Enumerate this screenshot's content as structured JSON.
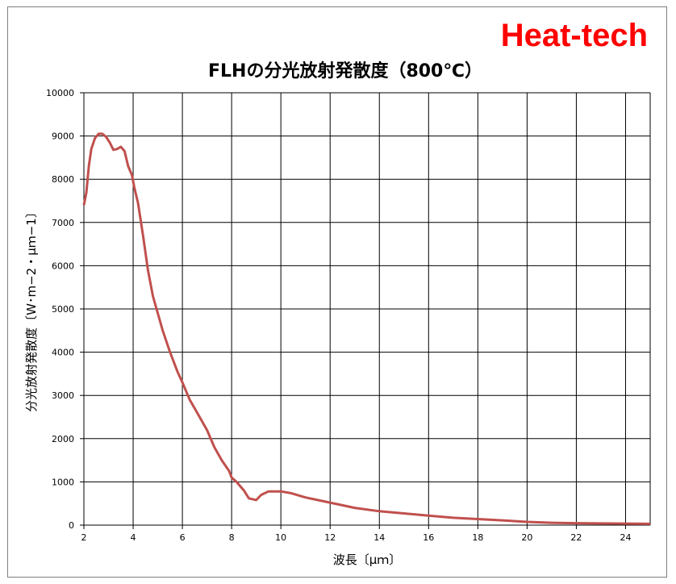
{
  "brand": "Heat-tech",
  "chart_data": {
    "type": "line",
    "title": "FLHの分光放射発散度（800℃）",
    "xlabel": "波長〔μｍ〕",
    "ylabel": "分光放射発散度〔W･m−2・μｍ−1〕",
    "xlim": [
      2,
      25
    ],
    "ylim": [
      0,
      10000
    ],
    "x_ticks": [
      "2",
      "4",
      "6",
      "8",
      "10",
      "12",
      "14",
      "16",
      "18",
      "20",
      "22",
      "24"
    ],
    "y_ticks": [
      "0",
      "1000",
      "2000",
      "3000",
      "4000",
      "5000",
      "6000",
      "7000",
      "8000",
      "9000",
      "10000"
    ],
    "grid": true,
    "legend": "none",
    "series": [
      {
        "color": "#c0504d",
        "x": [
          2.0,
          2.1,
          2.2,
          2.3,
          2.45,
          2.6,
          2.75,
          2.9,
          3.05,
          3.2,
          3.35,
          3.5,
          3.65,
          3.8,
          3.95,
          4.05,
          4.2,
          4.4,
          4.6,
          4.8,
          5.0,
          5.2,
          5.5,
          5.8,
          6.0,
          6.3,
          6.6,
          7.0,
          7.3,
          7.6,
          7.9,
          8.0,
          8.2,
          8.5,
          8.7,
          9.0,
          9.2,
          9.5,
          10.0,
          10.4,
          11.0,
          12.0,
          13.0,
          14.0,
          15.0,
          16.0,
          17.0,
          18.0,
          19.0,
          20.0,
          21.0,
          22.0,
          23.0,
          24.0,
          25.0
        ],
        "y": [
          7400,
          7700,
          8300,
          8700,
          8950,
          9050,
          9050,
          8980,
          8850,
          8680,
          8700,
          8750,
          8650,
          8300,
          8100,
          7800,
          7450,
          6700,
          5900,
          5300,
          4900,
          4500,
          4000,
          3550,
          3300,
          2900,
          2600,
          2200,
          1800,
          1500,
          1250,
          1100,
          1000,
          800,
          620,
          580,
          700,
          780,
          780,
          740,
          640,
          520,
          400,
          320,
          270,
          220,
          170,
          140,
          110,
          75,
          55,
          45,
          40,
          35,
          30
        ]
      }
    ]
  }
}
